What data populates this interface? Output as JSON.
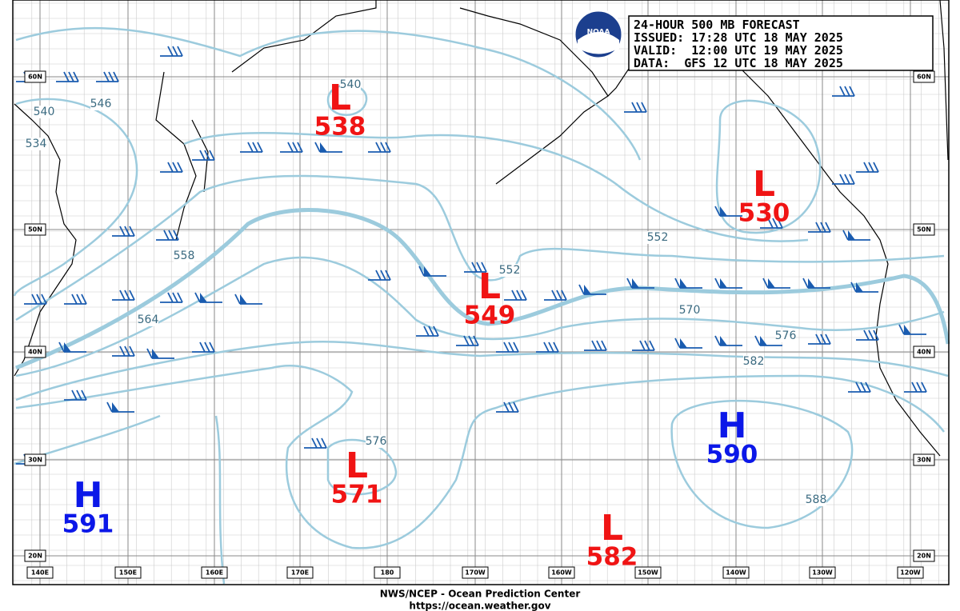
{
  "header": {
    "lines": [
      "24-HOUR 500 MB FORECAST",
      "ISSUED: 17:28 UTC 18 MAY 2025",
      "VALID:  12:00 UTC 19 MAY 2025",
      "DATA:  GFS 12 UTC 18 MAY 2025"
    ]
  },
  "logo": "NOAA",
  "centers": [
    {
      "type": "L",
      "value": 538
    },
    {
      "type": "L",
      "value": 530
    },
    {
      "type": "L",
      "value": 549
    },
    {
      "type": "L",
      "value": 571
    },
    {
      "type": "L",
      "value": 582
    },
    {
      "type": "H",
      "value": 590
    },
    {
      "type": "H",
      "value": 591
    }
  ],
  "contour_labels": [
    "540",
    "546",
    "540",
    "534",
    "558",
    "564",
    "552",
    "552",
    "570",
    "576",
    "582",
    "576",
    "588"
  ],
  "lat_labels": [
    "60N",
    "50N",
    "40N",
    "30N",
    "20N"
  ],
  "lon_labels": [
    "140E",
    "150E",
    "160E",
    "170E",
    "180",
    "170W",
    "160W",
    "150W",
    "140W",
    "130W",
    "120W"
  ],
  "footer": [
    "NWS/NCEP - Ocean Prediction Center",
    "https://ocean.weather.gov"
  ]
}
